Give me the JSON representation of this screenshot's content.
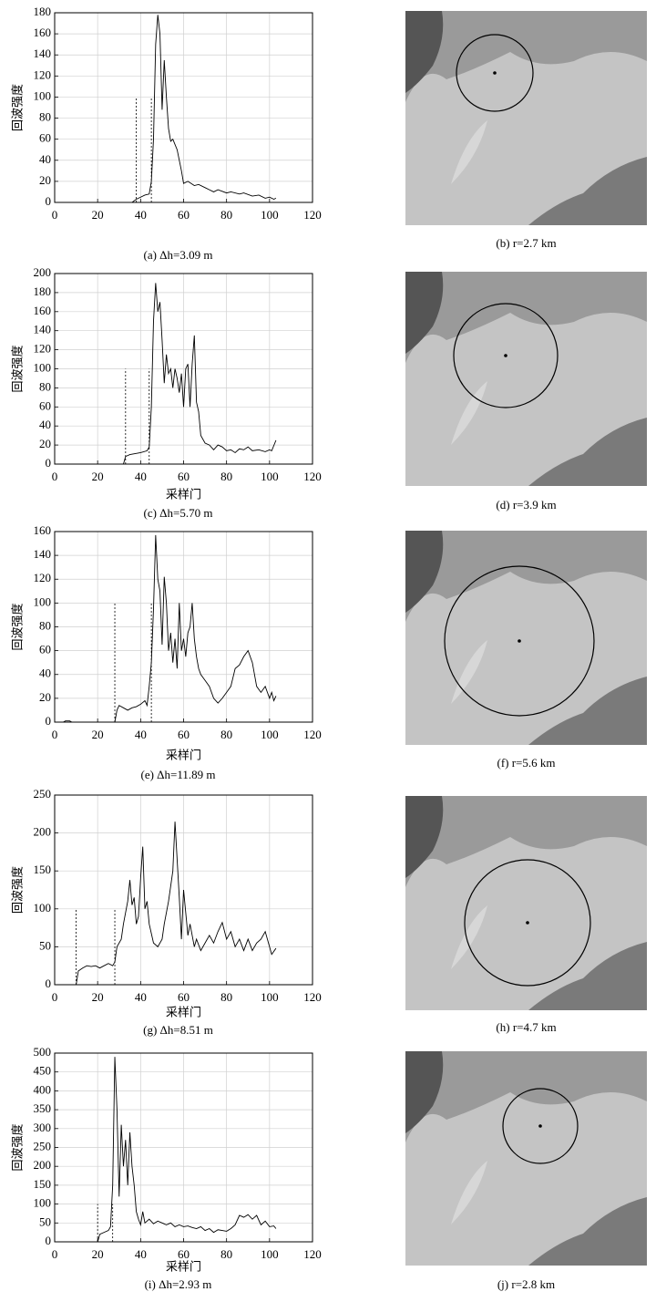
{
  "chart_data": [
    {
      "type": "line",
      "ylabel": "回波强度",
      "caption": "(a) Δh=3.09 m",
      "color": "#000000",
      "x": [
        0,
        36,
        38,
        40,
        42,
        44,
        45,
        46,
        47,
        48,
        49,
        50,
        51,
        52,
        53,
        54,
        55,
        57,
        58,
        59,
        60,
        62,
        65,
        67,
        70,
        72,
        74,
        76,
        80,
        82,
        86,
        88,
        92,
        95,
        98,
        100,
        102,
        103
      ],
      "values": [
        0,
        0,
        3,
        5,
        7,
        8,
        20,
        60,
        150,
        178,
        160,
        88,
        135,
        100,
        70,
        58,
        60,
        50,
        40,
        30,
        18,
        20,
        16,
        17,
        14,
        12,
        10,
        12,
        9,
        10,
        8,
        9,
        6,
        7,
        4,
        5,
        3,
        4
      ],
      "vlines": [
        {
          "x": 38,
          "y": 100
        },
        {
          "x": 45,
          "y": 100
        }
      ],
      "xlim": [
        0,
        120
      ],
      "xticks": [
        0,
        20,
        40,
        60,
        80,
        100,
        120
      ],
      "ylim": [
        0,
        180
      ],
      "yticks": [
        0,
        20,
        40,
        60,
        80,
        100,
        120,
        140,
        160,
        180
      ],
      "grid": true
    },
    {
      "type": "line",
      "ylabel": "回波强度",
      "xlabel": "采样门",
      "caption": "(c) Δh=5.70 m",
      "color": "#000000",
      "x": [
        0,
        32,
        33,
        35,
        40,
        43,
        44,
        45,
        46,
        47,
        48,
        49,
        50,
        51,
        52,
        53,
        54,
        55,
        56,
        57,
        58,
        59,
        60,
        61,
        62,
        63,
        64,
        65,
        66,
        67,
        68,
        70,
        72,
        74,
        76,
        78,
        80,
        82,
        84,
        86,
        88,
        90,
        92,
        95,
        98,
        100,
        101,
        103
      ],
      "values": [
        0,
        0,
        8,
        10,
        12,
        14,
        18,
        60,
        150,
        190,
        160,
        170,
        130,
        85,
        115,
        95,
        100,
        80,
        100,
        90,
        75,
        95,
        60,
        100,
        105,
        60,
        105,
        135,
        65,
        55,
        30,
        22,
        20,
        15,
        20,
        18,
        14,
        15,
        12,
        16,
        15,
        18,
        14,
        15,
        13,
        15,
        14,
        25
      ],
      "vlines": [
        {
          "x": 33,
          "y": 100
        },
        {
          "x": 44,
          "y": 100
        }
      ],
      "xlim": [
        0,
        120
      ],
      "xticks": [
        0,
        20,
        40,
        60,
        80,
        100,
        120
      ],
      "ylim": [
        0,
        200
      ],
      "yticks": [
        0,
        20,
        40,
        60,
        80,
        100,
        120,
        140,
        160,
        180,
        200
      ],
      "grid": true
    },
    {
      "type": "line",
      "ylabel": "回波强度",
      "xlabel": "采样门",
      "caption": "(e) Δh=11.89 m",
      "color": "#000000",
      "x": [
        0,
        4,
        5,
        7,
        8,
        28,
        29,
        30,
        32,
        34,
        36,
        38,
        40,
        42,
        43,
        44,
        45,
        46,
        47,
        48,
        49,
        50,
        51,
        52,
        53,
        54,
        55,
        56,
        57,
        58,
        59,
        60,
        61,
        62,
        63,
        64,
        65,
        66,
        67,
        68,
        70,
        72,
        74,
        76,
        78,
        80,
        82,
        84,
        86,
        88,
        90,
        92,
        94,
        96,
        98,
        100,
        101,
        102,
        103
      ],
      "values": [
        0,
        0,
        1,
        1,
        0,
        0,
        10,
        14,
        12,
        10,
        12,
        13,
        15,
        18,
        14,
        30,
        50,
        95,
        157,
        120,
        110,
        65,
        122,
        100,
        60,
        75,
        50,
        70,
        45,
        100,
        60,
        70,
        55,
        75,
        80,
        100,
        70,
        55,
        45,
        40,
        35,
        30,
        20,
        16,
        20,
        25,
        30,
        45,
        48,
        55,
        60,
        50,
        30,
        25,
        30,
        20,
        25,
        18,
        22
      ],
      "vlines": [
        {
          "x": 28,
          "y": 100
        },
        {
          "x": 45,
          "y": 100
        }
      ],
      "xlim": [
        0,
        120
      ],
      "xticks": [
        0,
        20,
        40,
        60,
        80,
        100,
        120
      ],
      "ylim": [
        0,
        160
      ],
      "yticks": [
        0,
        20,
        40,
        60,
        80,
        100,
        120,
        140,
        160
      ],
      "grid": true
    },
    {
      "type": "line",
      "ylabel": "回波强度",
      "xlabel": "采样门",
      "caption": "(g) Δh=8.51 m",
      "color": "#000000",
      "x": [
        0,
        10,
        11,
        13,
        15,
        17,
        19,
        21,
        23,
        25,
        27,
        28,
        29,
        31,
        32,
        34,
        35,
        36,
        37,
        38,
        39,
        40,
        41,
        42,
        43,
        44,
        46,
        48,
        50,
        51,
        53,
        55,
        56,
        57,
        58,
        59,
        60,
        62,
        63,
        65,
        66,
        68,
        70,
        72,
        74,
        76,
        78,
        80,
        82,
        84,
        86,
        88,
        90,
        92,
        94,
        96,
        98,
        100,
        101,
        103
      ],
      "values": [
        0,
        0,
        18,
        22,
        25,
        24,
        25,
        22,
        25,
        28,
        25,
        30,
        50,
        60,
        80,
        110,
        138,
        105,
        115,
        80,
        90,
        140,
        182,
        100,
        110,
        80,
        55,
        50,
        60,
        80,
        110,
        150,
        215,
        165,
        115,
        60,
        125,
        65,
        80,
        50,
        60,
        45,
        55,
        65,
        55,
        70,
        82,
        60,
        70,
        50,
        60,
        45,
        60,
        45,
        55,
        60,
        70,
        50,
        40,
        48
      ],
      "vlines": [
        {
          "x": 10,
          "y": 100
        },
        {
          "x": 28,
          "y": 100
        }
      ],
      "xlim": [
        0,
        120
      ],
      "xticks": [
        0,
        20,
        40,
        60,
        80,
        100,
        120
      ],
      "ylim": [
        0,
        250
      ],
      "yticks": [
        0,
        50,
        100,
        150,
        200,
        250
      ],
      "grid": true
    },
    {
      "type": "line",
      "ylabel": "回波强度",
      "xlabel": "采样门",
      "caption": "(i) Δh=2.93 m",
      "color": "#000000",
      "x": [
        0,
        20,
        21,
        23,
        25,
        26,
        27,
        28,
        29,
        30,
        31,
        32,
        33,
        34,
        35,
        36,
        37,
        38,
        39,
        40,
        41,
        42,
        44,
        46,
        48,
        50,
        52,
        54,
        56,
        58,
        60,
        62,
        64,
        66,
        68,
        70,
        72,
        74,
        76,
        78,
        80,
        82,
        84,
        86,
        88,
        90,
        92,
        94,
        96,
        98,
        100,
        102,
        103
      ],
      "values": [
        0,
        0,
        20,
        25,
        30,
        40,
        150,
        490,
        350,
        120,
        310,
        200,
        270,
        150,
        290,
        200,
        150,
        80,
        60,
        45,
        80,
        50,
        60,
        48,
        55,
        50,
        45,
        50,
        40,
        45,
        40,
        42,
        38,
        35,
        40,
        30,
        35,
        25,
        32,
        30,
        28,
        35,
        45,
        70,
        65,
        72,
        60,
        70,
        45,
        55,
        40,
        42,
        35
      ],
      "vlines": [
        {
          "x": 20,
          "y": 100
        },
        {
          "x": 27,
          "y": 100
        }
      ],
      "xlim": [
        0,
        120
      ],
      "xticks": [
        0,
        20,
        40,
        60,
        80,
        100,
        120
      ],
      "ylim": [
        0,
        500
      ],
      "yticks": [
        0,
        50,
        100,
        150,
        200,
        250,
        300,
        350,
        400,
        450,
        500
      ],
      "grid": true
    }
  ],
  "images": [
    {
      "caption": "(b) r=2.7 km"
    },
    {
      "caption": "(d) r=3.9 km"
    },
    {
      "caption": "(f) r=5.6 km"
    },
    {
      "caption": "(h) r=4.7 km"
    },
    {
      "caption": "(j) r=2.8 km"
    }
  ]
}
